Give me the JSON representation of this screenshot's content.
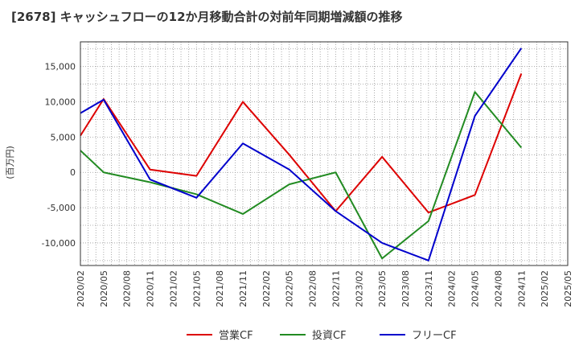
{
  "chart_data": {
    "type": "line",
    "title": "[2678]  キャッシュフローの12か月移動合計の対前年同期増減額の推移",
    "ylabel": "(百万円)",
    "xlabel": "",
    "ylim": [
      -13200,
      18500
    ],
    "yticks": [
      -10000,
      -5000,
      0,
      5000,
      10000,
      15000
    ],
    "ytick_labels": [
      "-10,000",
      "-5,000",
      "0",
      "5,000",
      "10,000",
      "15,000"
    ],
    "categories": [
      "2020/02",
      "2020/05",
      "2020/08",
      "2020/11",
      "2021/02",
      "2021/05",
      "2021/08",
      "2021/11",
      "2022/02",
      "2022/05",
      "2022/08",
      "2022/11",
      "2023/02",
      "2023/05",
      "2023/08",
      "2023/11",
      "2024/02",
      "2024/05",
      "2024/08",
      "2024/11",
      "2025/02",
      "2025/05"
    ],
    "grid": true,
    "legend_position": "bottom",
    "series": [
      {
        "name": "営業CF",
        "color": "#dd0000",
        "points": [
          [
            "2020/02",
            5200
          ],
          [
            "2020/05",
            10400
          ],
          [
            "2020/11",
            400
          ],
          [
            "2021/05",
            -500
          ],
          [
            "2021/11",
            10000
          ],
          [
            "2022/05",
            2500
          ],
          [
            "2022/11",
            -5500
          ],
          [
            "2023/05",
            2200
          ],
          [
            "2023/11",
            -5700
          ],
          [
            "2024/05",
            -3200
          ],
          [
            "2024/11",
            14000
          ]
        ]
      },
      {
        "name": "投資CF",
        "color": "#228b22",
        "points": [
          [
            "2020/02",
            3100
          ],
          [
            "2020/05",
            0
          ],
          [
            "2020/11",
            -1400
          ],
          [
            "2021/05",
            -3100
          ],
          [
            "2021/11",
            -5900
          ],
          [
            "2022/05",
            -1700
          ],
          [
            "2022/11",
            0
          ],
          [
            "2023/05",
            -12200
          ],
          [
            "2023/11",
            -6900
          ],
          [
            "2024/05",
            11400
          ],
          [
            "2024/11",
            3500
          ]
        ]
      },
      {
        "name": "フリーCF",
        "color": "#0000cc",
        "points": [
          [
            "2020/02",
            8400
          ],
          [
            "2020/05",
            10300
          ],
          [
            "2020/11",
            -1000
          ],
          [
            "2021/05",
            -3600
          ],
          [
            "2021/11",
            4100
          ],
          [
            "2022/05",
            400
          ],
          [
            "2022/11",
            -5500
          ],
          [
            "2023/05",
            -10000
          ],
          [
            "2023/11",
            -12500
          ],
          [
            "2024/05",
            8000
          ],
          [
            "2024/11",
            17600
          ]
        ]
      }
    ]
  }
}
